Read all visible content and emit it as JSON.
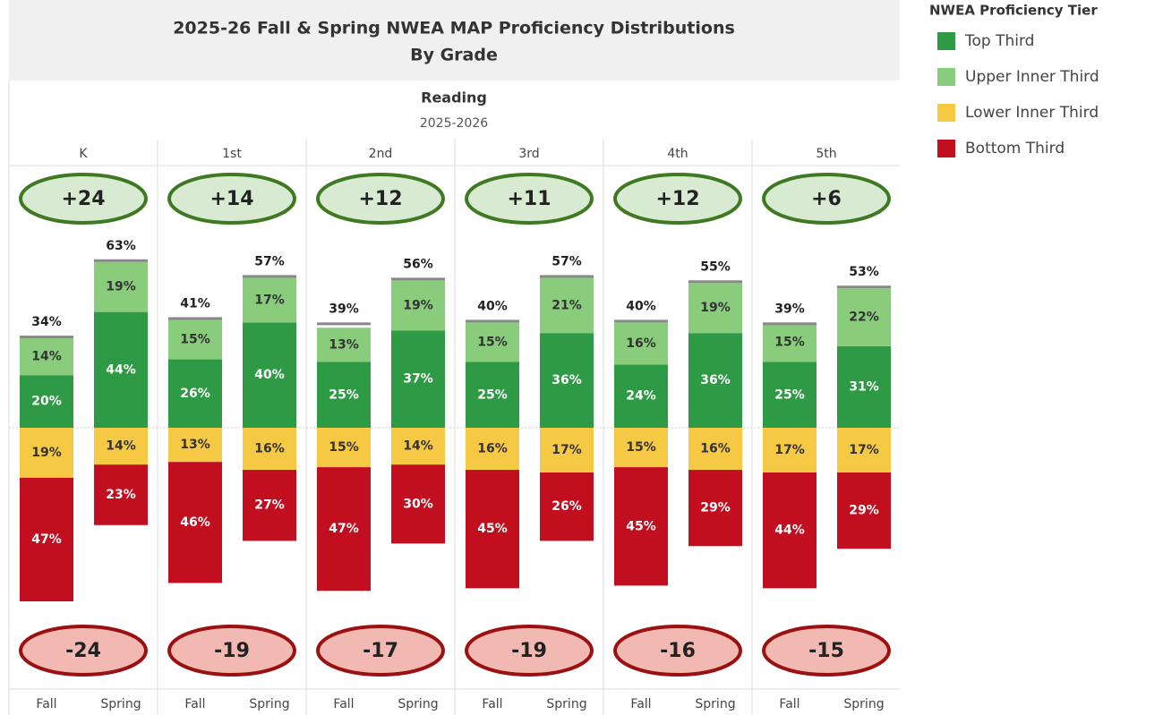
{
  "chart_data": {
    "type": "diverging-stacked-bar",
    "title": "2025-26 Fall & Spring NWEA MAP Proficiency Distributions",
    "title_line2": "By Grade",
    "subtitle": "Reading",
    "subtitle_line2": "2025-2026",
    "categories": [
      "K",
      "1st",
      "2nd",
      "3rd",
      "4th",
      "5th"
    ],
    "periods": [
      "Fall",
      "Spring"
    ],
    "legend_title": "NWEA Proficiency Tier",
    "series": [
      {
        "name": "Top Third",
        "color": "#2e9a45",
        "side": "up",
        "values": [
          [
            20,
            44
          ],
          [
            26,
            40
          ],
          [
            25,
            37
          ],
          [
            25,
            36
          ],
          [
            24,
            36
          ],
          [
            25,
            31
          ]
        ],
        "value_labels": [
          [
            "20%",
            "44%"
          ],
          [
            "26%",
            "40%"
          ],
          [
            "25%",
            "37%"
          ],
          [
            "25%",
            "36%"
          ],
          [
            "24%",
            "36%"
          ],
          [
            "25%",
            "31%"
          ]
        ]
      },
      {
        "name": "Upper Inner Third",
        "color": "#88cc7c",
        "side": "up",
        "values": [
          [
            14,
            19
          ],
          [
            15,
            17
          ],
          [
            13,
            19
          ],
          [
            15,
            21
          ],
          [
            16,
            19
          ],
          [
            15,
            22
          ]
        ],
        "value_labels": [
          [
            "14%",
            "19%"
          ],
          [
            "15%",
            "17%"
          ],
          [
            "13%",
            "19%"
          ],
          [
            "15%",
            "21%"
          ],
          [
            "16%",
            "19%"
          ],
          [
            "15%",
            "22%"
          ]
        ]
      },
      {
        "name": "Lower Inner Third",
        "color": "#f6c945",
        "side": "down",
        "values": [
          [
            19,
            14
          ],
          [
            13,
            16
          ],
          [
            15,
            14
          ],
          [
            16,
            17
          ],
          [
            15,
            16
          ],
          [
            17,
            17
          ]
        ],
        "value_labels": [
          [
            "19%",
            "14%"
          ],
          [
            "13%",
            "16%"
          ],
          [
            "15%",
            "14%"
          ],
          [
            "16%",
            "17%"
          ],
          [
            "15%",
            "16%"
          ],
          [
            "17%",
            "17%"
          ]
        ]
      },
      {
        "name": "Bottom Third",
        "color": "#c10f1f",
        "side": "down",
        "values": [
          [
            47,
            23
          ],
          [
            46,
            27
          ],
          [
            47,
            30
          ],
          [
            45,
            26
          ],
          [
            45,
            29
          ],
          [
            44,
            29
          ]
        ],
        "value_labels": [
          [
            "47%",
            "23%"
          ],
          [
            "46%",
            "27%"
          ],
          [
            "47%",
            "30%"
          ],
          [
            "45%",
            "26%"
          ],
          [
            "45%",
            "29%"
          ],
          [
            "44%",
            "29%"
          ]
        ]
      }
    ],
    "totals": [
      [
        34,
        63
      ],
      [
        41,
        57
      ],
      [
        39,
        56
      ],
      [
        40,
        57
      ],
      [
        40,
        55
      ],
      [
        39,
        53
      ]
    ],
    "total_labels": [
      [
        "34%",
        "63%"
      ],
      [
        "41%",
        "57%"
      ],
      [
        "39%",
        "56%"
      ],
      [
        "40%",
        "57%"
      ],
      [
        "40%",
        "55%"
      ],
      [
        "39%",
        "53%"
      ]
    ],
    "top_change": [
      "+24",
      "+14",
      "+12",
      "+11",
      "+12",
      "+6"
    ],
    "bottom_change": [
      "-24",
      "-19",
      "-17",
      "-19",
      "-16",
      "-15"
    ]
  }
}
